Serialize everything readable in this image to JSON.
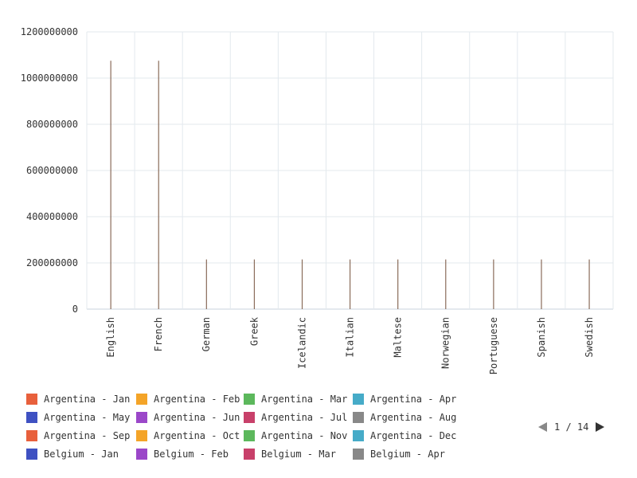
{
  "chart_data": {
    "type": "bar",
    "categories": [
      "English",
      "French",
      "German",
      "Greek",
      "Icelandic",
      "Italian",
      "Maltese",
      "Norwegian",
      "Portuguese",
      "Spanish",
      "Swedish"
    ],
    "values": [
      1075000000,
      1075000000,
      215000000,
      215000000,
      215000000,
      215000000,
      215000000,
      215000000,
      215000000,
      215000000,
      215000000
    ],
    "bar_color": "#8a6c5a",
    "ylim": [
      0,
      1200000000
    ],
    "yticks": [
      0,
      200000000,
      400000000,
      600000000,
      800000000,
      1000000000,
      1200000000
    ],
    "ytick_labels": [
      "0",
      "200000000",
      "400000000",
      "600000000",
      "800000000",
      "1000000000",
      "1200000000"
    ],
    "grid": true,
    "xlabel": "",
    "ylabel": "",
    "title": ""
  },
  "legend": {
    "placement": "bottom",
    "items": [
      {
        "label": "Argentina - Jan",
        "color": "#e8603c"
      },
      {
        "label": "Argentina - Feb",
        "color": "#f4a428"
      },
      {
        "label": "Argentina - Mar",
        "color": "#5cb85c"
      },
      {
        "label": "Argentina - Apr",
        "color": "#46abc8"
      },
      {
        "label": "Argentina - May",
        "color": "#3f51c2"
      },
      {
        "label": "Argentina - Jun",
        "color": "#9b47c9"
      },
      {
        "label": "Argentina - Jul",
        "color": "#c8406a"
      },
      {
        "label": "Argentina - Aug",
        "color": "#888888"
      },
      {
        "label": "Argentina - Sep",
        "color": "#e8603c"
      },
      {
        "label": "Argentina - Oct",
        "color": "#f4a428"
      },
      {
        "label": "Argentina - Nov",
        "color": "#5cb85c"
      },
      {
        "label": "Argentina - Dec",
        "color": "#46abc8"
      },
      {
        "label": "Belgium - Jan",
        "color": "#3f51c2"
      },
      {
        "label": "Belgium - Feb",
        "color": "#9b47c9"
      },
      {
        "label": "Belgium - Mar",
        "color": "#c8406a"
      },
      {
        "label": "Belgium - Apr",
        "color": "#888888"
      }
    ],
    "pagination": {
      "current": 1,
      "total": 14,
      "text": "1 / 14"
    }
  }
}
